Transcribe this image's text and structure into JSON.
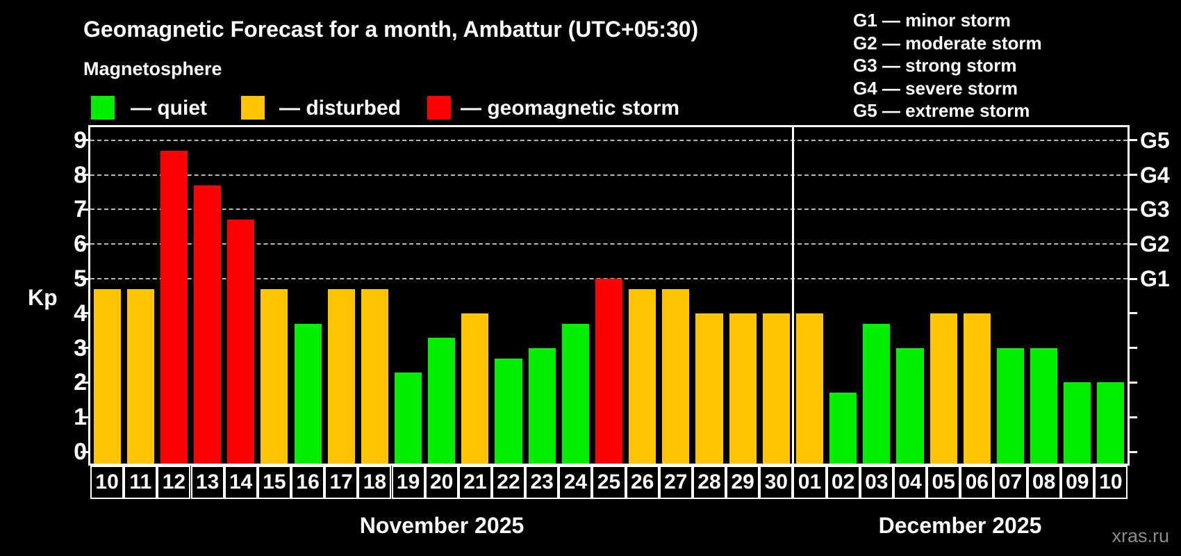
{
  "title": "Geomagnetic Forecast for a month, Ambattur (UTC+05:30)",
  "subtitle": "Magnetosphere",
  "kp_axis_label": "Kp",
  "watermark": "xras.ru",
  "colors": {
    "quiet": "#00ee00",
    "disturbed": "#ffc400",
    "storm": "#ff0000",
    "axis": "#ffffff",
    "grid": "#b8b8b8",
    "watermark_text": "#8c8c8c",
    "background": "#000000"
  },
  "legend": {
    "quiet_label": "— quiet",
    "disturbed_label": "— disturbed",
    "storm_label": "— geomagnetic storm"
  },
  "g_legend": [
    "G1 — minor storm",
    "G2 — moderate storm",
    "G3 — strong storm",
    "G4 — severe storm",
    "G5 — extreme storm"
  ],
  "chart_data": {
    "type": "bar",
    "title": "Geomagnetic Forecast for a month, Ambattur (UTC+05:30)",
    "xlabel": "",
    "ylabel": "Kp",
    "ylim": [
      0,
      9.4
    ],
    "grid": "horizontal dashed lines at Kp 5,6,7,8,9",
    "legend_position": "top-left",
    "kp_ticks": [
      0,
      1,
      2,
      3,
      4,
      5,
      6,
      7,
      8,
      9
    ],
    "right_axis": [
      {
        "label": "G1",
        "kp": 5
      },
      {
        "label": "G2",
        "kp": 6
      },
      {
        "label": "G3",
        "kp": 7
      },
      {
        "label": "G4",
        "kp": 8
      },
      {
        "label": "G5",
        "kp": 9
      }
    ],
    "months": [
      {
        "name": "November 2025",
        "days": 21
      },
      {
        "name": "December 2025",
        "days": 10
      }
    ],
    "bars": [
      {
        "day": "10",
        "kp": 4.7,
        "status": "disturbed"
      },
      {
        "day": "11",
        "kp": 4.7,
        "status": "disturbed"
      },
      {
        "day": "12",
        "kp": 8.7,
        "status": "storm"
      },
      {
        "day": "13",
        "kp": 7.7,
        "status": "storm"
      },
      {
        "day": "14",
        "kp": 6.7,
        "status": "storm"
      },
      {
        "day": "15",
        "kp": 4.7,
        "status": "disturbed"
      },
      {
        "day": "16",
        "kp": 3.7,
        "status": "quiet"
      },
      {
        "day": "17",
        "kp": 4.7,
        "status": "disturbed"
      },
      {
        "day": "18",
        "kp": 4.7,
        "status": "disturbed"
      },
      {
        "day": "19",
        "kp": 2.3,
        "status": "quiet"
      },
      {
        "day": "20",
        "kp": 3.3,
        "status": "quiet"
      },
      {
        "day": "21",
        "kp": 4.0,
        "status": "disturbed"
      },
      {
        "day": "22",
        "kp": 2.7,
        "status": "quiet"
      },
      {
        "day": "23",
        "kp": 3.0,
        "status": "quiet"
      },
      {
        "day": "24",
        "kp": 3.7,
        "status": "quiet"
      },
      {
        "day": "25",
        "kp": 5.0,
        "status": "storm"
      },
      {
        "day": "26",
        "kp": 4.7,
        "status": "disturbed"
      },
      {
        "day": "27",
        "kp": 4.7,
        "status": "disturbed"
      },
      {
        "day": "28",
        "kp": 4.0,
        "status": "disturbed"
      },
      {
        "day": "29",
        "kp": 4.0,
        "status": "disturbed"
      },
      {
        "day": "30",
        "kp": 4.0,
        "status": "disturbed"
      },
      {
        "day": "01",
        "kp": 4.0,
        "status": "disturbed"
      },
      {
        "day": "02",
        "kp": 1.7,
        "status": "quiet"
      },
      {
        "day": "03",
        "kp": 3.7,
        "status": "quiet"
      },
      {
        "day": "04",
        "kp": 3.0,
        "status": "quiet"
      },
      {
        "day": "05",
        "kp": 4.0,
        "status": "disturbed"
      },
      {
        "day": "06",
        "kp": 4.0,
        "status": "disturbed"
      },
      {
        "day": "07",
        "kp": 3.0,
        "status": "quiet"
      },
      {
        "day": "08",
        "kp": 3.0,
        "status": "quiet"
      },
      {
        "day": "09",
        "kp": 2.0,
        "status": "quiet"
      },
      {
        "day": "10",
        "kp": 2.0,
        "status": "quiet"
      }
    ]
  }
}
